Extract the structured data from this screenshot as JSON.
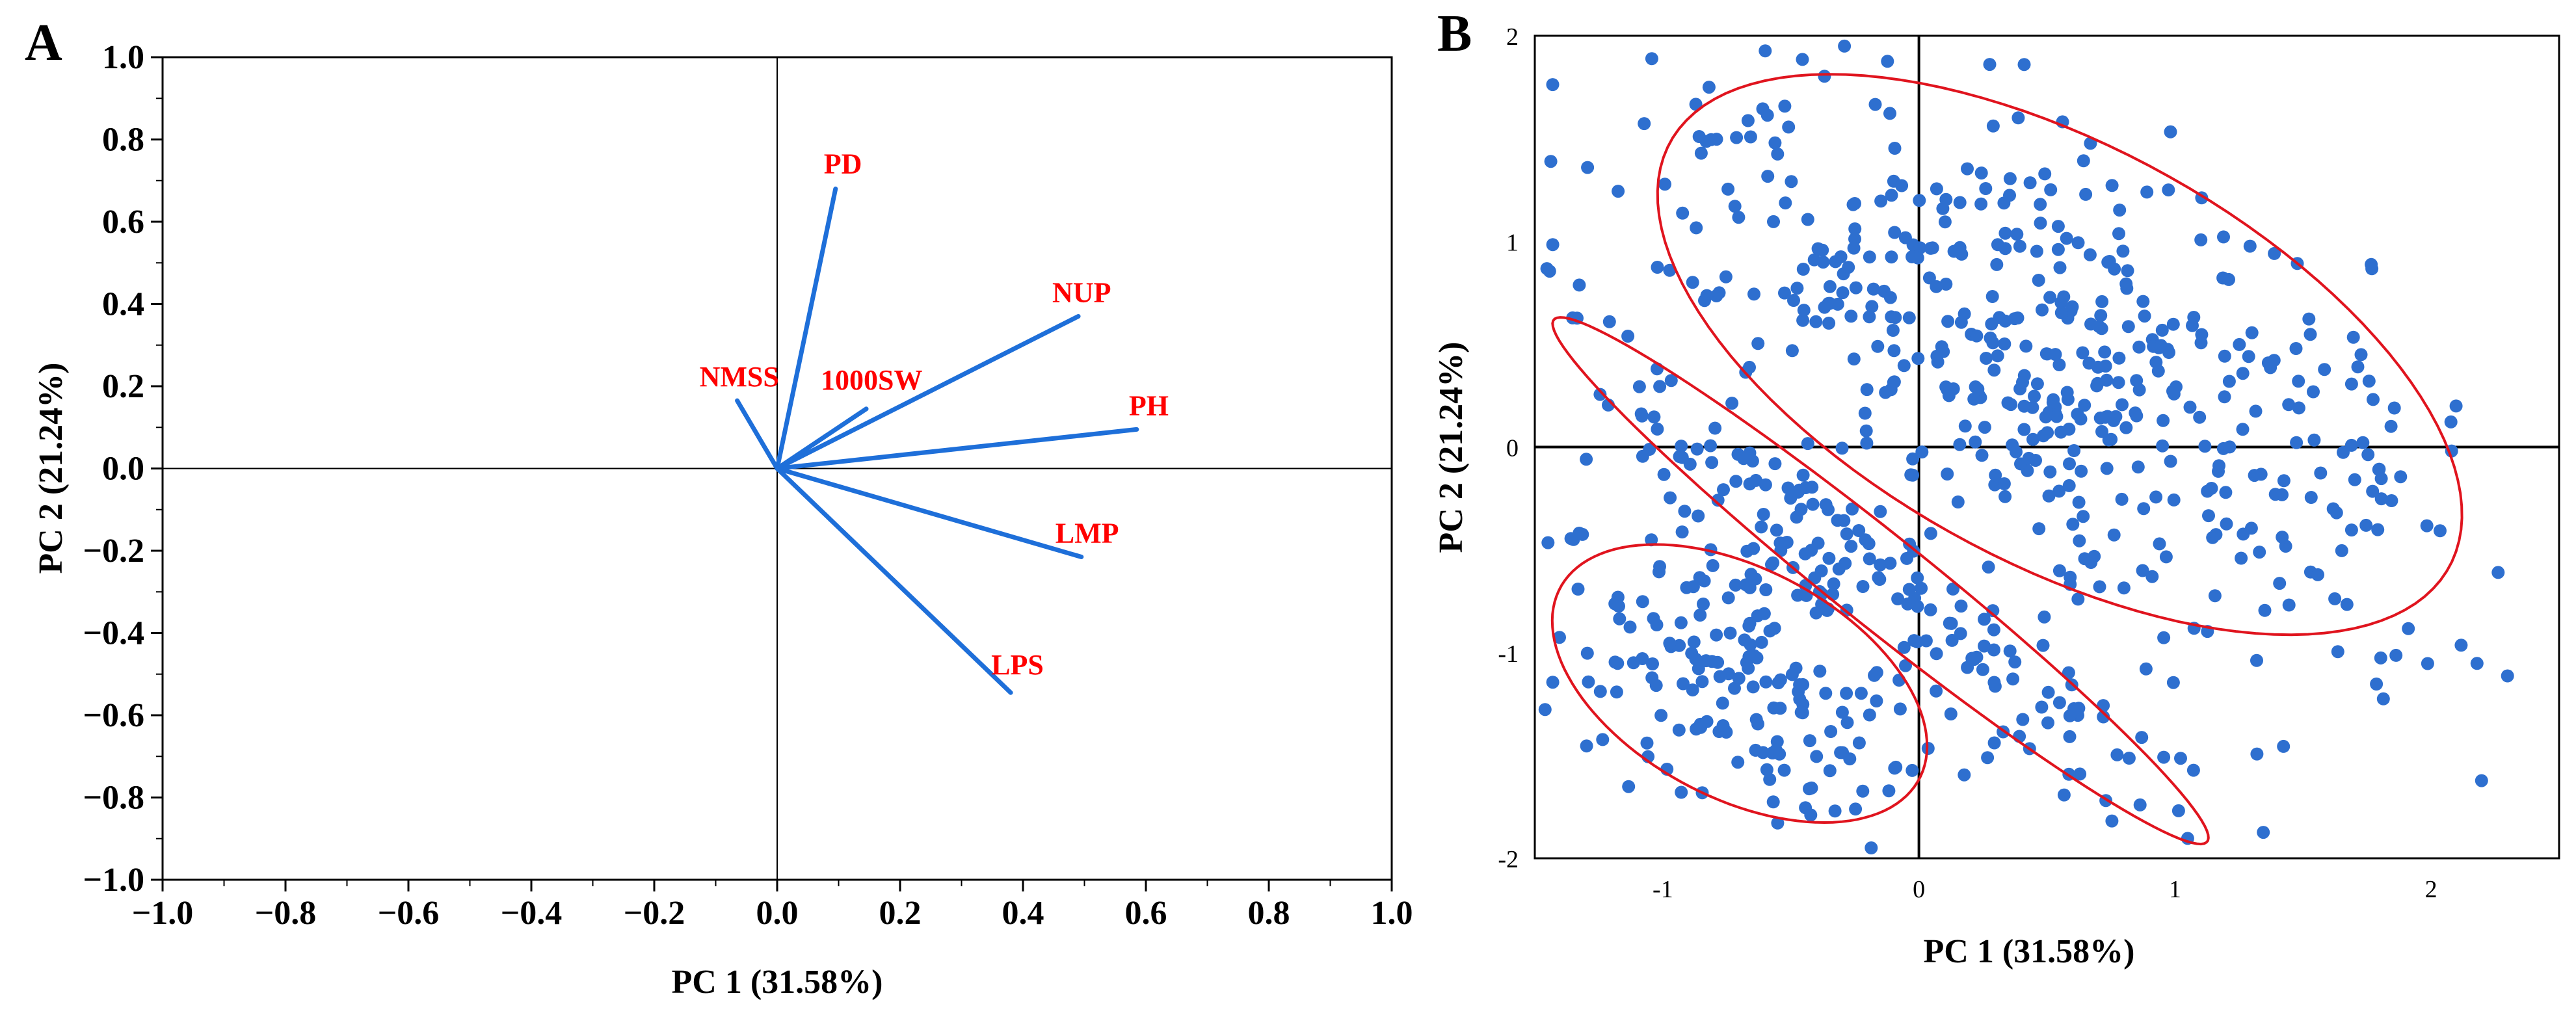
{
  "chart_data": [
    {
      "panel": "A",
      "type": "biplot",
      "xlabel": "PC 1 (31.58%)",
      "ylabel": "PC 2 (21.24%)",
      "xlim": [
        -1.0,
        1.0
      ],
      "ylim": [
        -1.0,
        1.0
      ],
      "ticks": [
        "−1.0",
        "−0.8",
        "−0.6",
        "−0.4",
        "−0.2",
        "0.0",
        "0.2",
        "0.4",
        "0.6",
        "0.8",
        "1.0"
      ],
      "vector_color": "#1E6FD9",
      "label_color": "#FF0000",
      "vectors": [
        {
          "label": "PD",
          "x": 0.095,
          "y": 0.68
        },
        {
          "label": "NUP",
          "x": 0.49,
          "y": 0.37
        },
        {
          "label": "NMSS",
          "x": -0.065,
          "y": 0.165
        },
        {
          "label": "1000SW",
          "x": 0.145,
          "y": 0.145
        },
        {
          "label": "PH",
          "x": 0.585,
          "y": 0.095
        },
        {
          "label": "LMP",
          "x": 0.495,
          "y": -0.215
        },
        {
          "label": "LPS",
          "x": 0.38,
          "y": -0.545
        }
      ]
    },
    {
      "panel": "B",
      "type": "scatter",
      "xlabel": "PC 1 (31.58%)",
      "ylabel": "PC 2 (21.24%)",
      "xlim": [
        -1.5,
        2.5
      ],
      "ylim": [
        -2,
        2
      ],
      "xticks": [
        "-1",
        "0",
        "1",
        "2"
      ],
      "yticks": [
        "2",
        "1",
        "0",
        "-1",
        "-2"
      ],
      "point_color": "#2E6FCF",
      "ellipse_color": "#E0141E",
      "n_points": 820,
      "ellipses": [
        {
          "cx": 0.55,
          "cy": 0.45,
          "rx": 1.85,
          "ry": 0.95,
          "angle_deg": -38
        },
        {
          "cx": -0.15,
          "cy": -0.65,
          "rx": 1.8,
          "ry": 0.2,
          "angle_deg": -45
        },
        {
          "cx": -0.7,
          "cy": -1.15,
          "rx": 0.85,
          "ry": 0.52,
          "angle_deg": -40
        }
      ]
    }
  ]
}
